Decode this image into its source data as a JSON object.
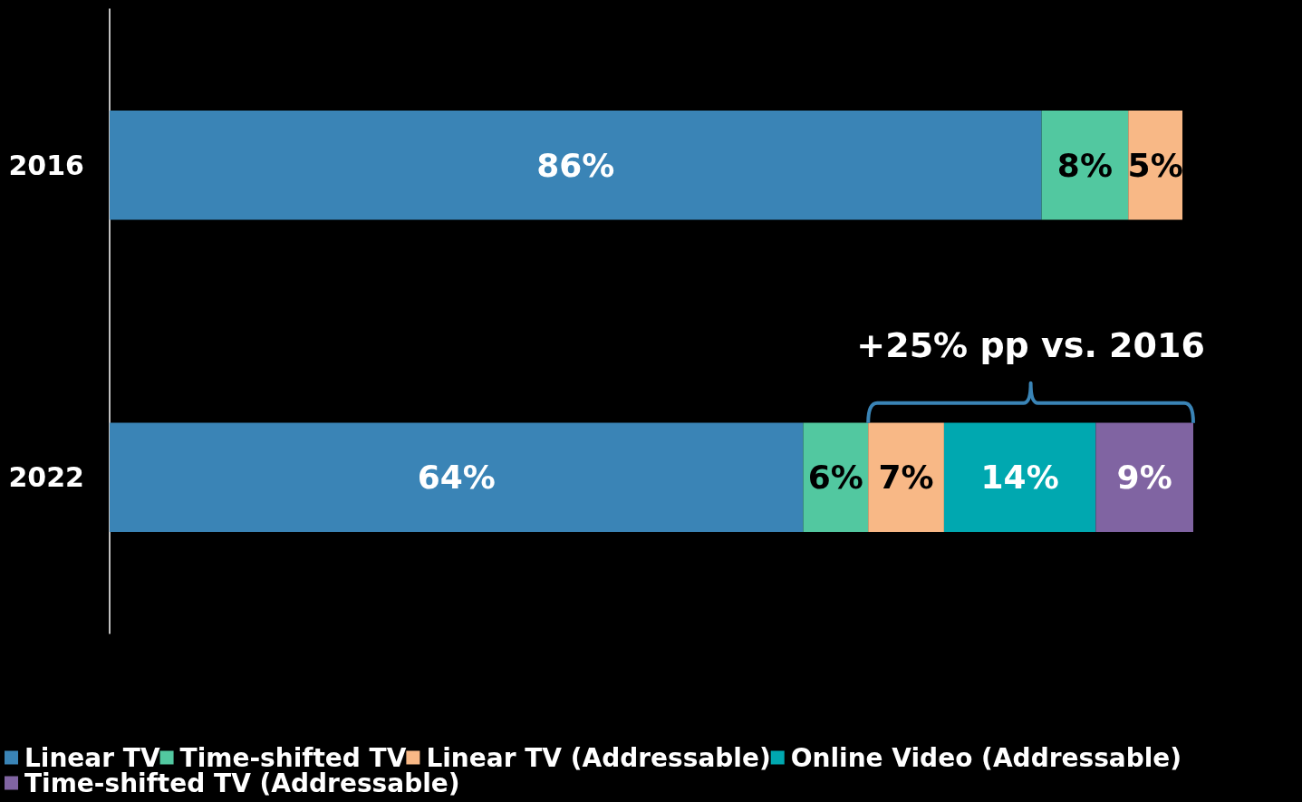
{
  "chart_data": {
    "type": "bar",
    "orientation": "horizontal",
    "stacked": true,
    "categories": [
      "2016",
      "2022"
    ],
    "xlim": [
      0,
      100
    ],
    "tick_labels": "y",
    "grid": false,
    "legend": "bottom",
    "series": [
      {
        "name": "Linear TV",
        "color": "#3a84b6",
        "values": [
          86,
          64
        ],
        "value_labels": [
          "86%",
          "64%"
        ]
      },
      {
        "name": "Time-shifted TV",
        "color": "#52c8a0",
        "values": [
          8,
          6
        ],
        "value_labels": [
          "8%",
          "6%"
        ]
      },
      {
        "name": "Linear TV (Addressable)",
        "color": "#f8b886",
        "values": [
          5,
          7
        ],
        "value_labels": [
          "5%",
          "7%"
        ]
      },
      {
        "name": "Online Video (Addressable)",
        "color": "#00a8b0",
        "values": [
          null,
          14
        ],
        "value_labels": [
          null,
          "14%"
        ]
      },
      {
        "name": "Time-shifted TV (Addressable)",
        "color": "#8064a2",
        "values": [
          null,
          9
        ],
        "value_labels": [
          null,
          "9%"
        ]
      }
    ],
    "annotations": [
      "+25% pp vs. 2016"
    ]
  }
}
